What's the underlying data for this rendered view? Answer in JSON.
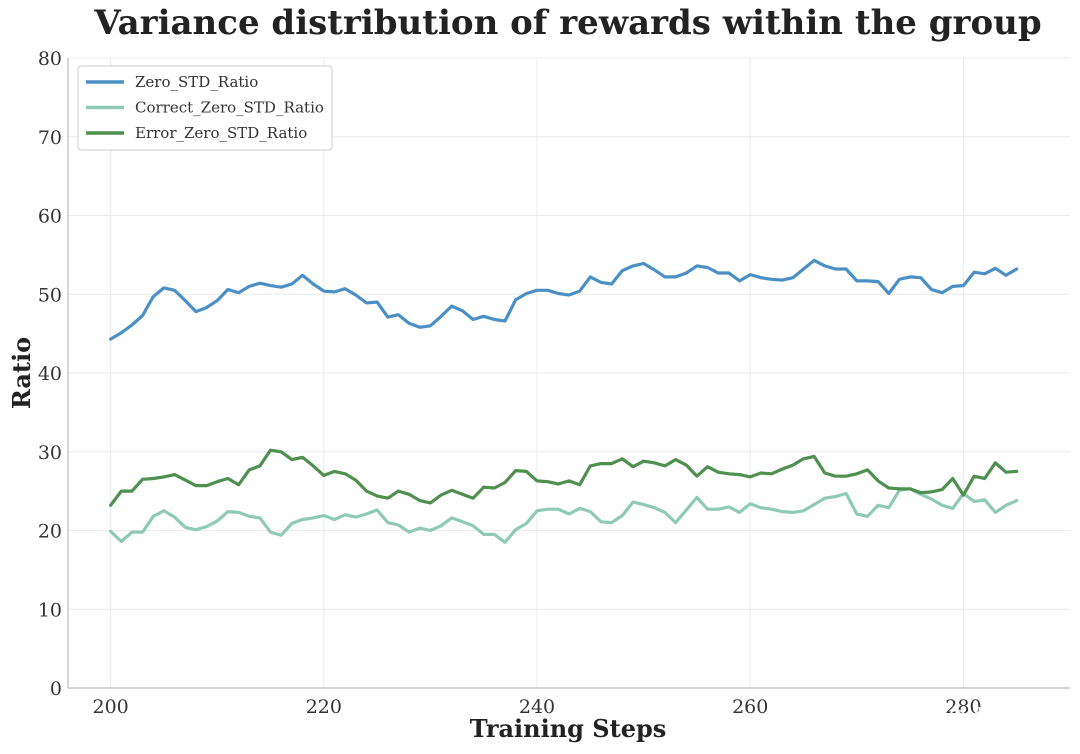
{
  "chart_data": {
    "type": "line",
    "title": "Variance distribution of rewards within the group",
    "xlabel": "Training Steps",
    "ylabel": "Ratio",
    "xlim": [
      196,
      290
    ],
    "ylim": [
      0,
      80
    ],
    "xticks": [
      200,
      220,
      240,
      260,
      280
    ],
    "yticks": [
      0,
      10,
      20,
      30,
      40,
      50,
      60,
      70,
      80
    ],
    "grid": true,
    "legend_position": "top-left",
    "x": [
      200,
      201,
      202,
      203,
      204,
      205,
      206,
      207,
      208,
      209,
      210,
      211,
      212,
      213,
      214,
      215,
      216,
      217,
      218,
      219,
      220,
      221,
      222,
      223,
      224,
      225,
      226,
      227,
      228,
      229,
      230,
      231,
      232,
      233,
      234,
      235,
      236,
      237,
      238,
      239,
      240,
      241,
      242,
      243,
      244,
      245,
      246,
      247,
      248,
      249,
      250,
      251,
      252,
      253,
      254,
      255,
      256,
      257,
      258,
      259,
      260,
      261,
      262,
      263,
      264,
      265,
      266,
      267,
      268,
      269,
      270,
      271,
      272,
      273,
      274,
      275,
      276,
      277,
      278,
      279,
      280,
      281,
      282,
      283,
      284,
      285
    ],
    "series": [
      {
        "name": "Zero_STD_Ratio",
        "color": "#4a90c4",
        "values": [
          44.3,
          45.1,
          46.1,
          47.3,
          49.7,
          50.8,
          50.5,
          49.2,
          47.8,
          48.3,
          49.2,
          50.6,
          50.2,
          51.0,
          51.4,
          51.1,
          50.9,
          51.3,
          52.4,
          51.3,
          50.4,
          50.3,
          50.7,
          49.9,
          48.9,
          49.0,
          47.1,
          47.4,
          46.3,
          45.8,
          46.0,
          47.2,
          48.5,
          47.9,
          46.8,
          47.2,
          46.8,
          46.6,
          49.3,
          50.1,
          50.5,
          50.5,
          50.1,
          49.9,
          50.4,
          52.2,
          51.5,
          51.3,
          53.0,
          53.6,
          53.9,
          53.1,
          52.2,
          52.2,
          52.7,
          53.6,
          53.4,
          52.7,
          52.7,
          51.7,
          52.5,
          52.1,
          51.9,
          51.8,
          52.1,
          53.2,
          54.3,
          53.6,
          53.2,
          53.2,
          51.7,
          51.7,
          51.6,
          50.1,
          51.9,
          52.2,
          52.1,
          50.6,
          50.2,
          51.0,
          51.1,
          52.8,
          52.6,
          53.3,
          52.4,
          53.2
        ]
      },
      {
        "name": "Correct_Zero_STD_Ratio",
        "color": "#8fcab5",
        "values": [
          19.9,
          18.6,
          19.8,
          19.8,
          21.8,
          22.5,
          21.7,
          20.4,
          20.1,
          20.5,
          21.2,
          22.4,
          22.3,
          21.8,
          21.6,
          19.8,
          19.4,
          20.9,
          21.4,
          21.6,
          21.9,
          21.4,
          22.0,
          21.7,
          22.1,
          22.6,
          21.0,
          20.7,
          19.8,
          20.3,
          20.0,
          20.6,
          21.6,
          21.1,
          20.6,
          19.5,
          19.5,
          18.5,
          20.1,
          20.9,
          22.5,
          22.7,
          22.7,
          22.1,
          22.8,
          22.4,
          21.1,
          21.0,
          21.9,
          23.6,
          23.3,
          22.9,
          22.3,
          21.0,
          22.6,
          24.2,
          22.7,
          22.7,
          23.0,
          22.3,
          23.4,
          22.9,
          22.7,
          22.4,
          22.3,
          22.5,
          23.3,
          24.1,
          24.3,
          24.7,
          22.1,
          21.8,
          23.2,
          22.9,
          25.1,
          25.3,
          24.6,
          24.0,
          23.2,
          22.8,
          24.7,
          23.7,
          23.9,
          22.3,
          23.2,
          23.8
        ]
      },
      {
        "name": "Error_Zero_STD_Ratio",
        "color": "#4f8f4f",
        "values": [
          23.2,
          25.0,
          25.0,
          26.5,
          26.6,
          26.8,
          27.1,
          26.4,
          25.7,
          25.7,
          26.2,
          26.6,
          25.8,
          27.7,
          28.2,
          30.2,
          30.0,
          29.0,
          29.3,
          28.2,
          27.0,
          27.5,
          27.2,
          26.4,
          25.0,
          24.4,
          24.1,
          25.0,
          24.6,
          23.8,
          23.5,
          24.5,
          25.1,
          24.6,
          24.1,
          25.5,
          25.4,
          26.1,
          27.6,
          27.5,
          26.3,
          26.2,
          25.9,
          26.3,
          25.8,
          28.2,
          28.5,
          28.5,
          29.1,
          28.1,
          28.8,
          28.6,
          28.2,
          29.0,
          28.3,
          26.9,
          28.1,
          27.4,
          27.2,
          27.1,
          26.8,
          27.3,
          27.2,
          27.8,
          28.3,
          29.1,
          29.4,
          27.3,
          26.9,
          26.9,
          27.2,
          27.7,
          26.3,
          25.4,
          25.3,
          25.3,
          24.8,
          24.9,
          25.2,
          26.6,
          24.5,
          26.9,
          26.6,
          28.6,
          27.4,
          27.5
        ]
      }
    ]
  },
  "watermark": "掘金技术社区 @ 机器之心"
}
